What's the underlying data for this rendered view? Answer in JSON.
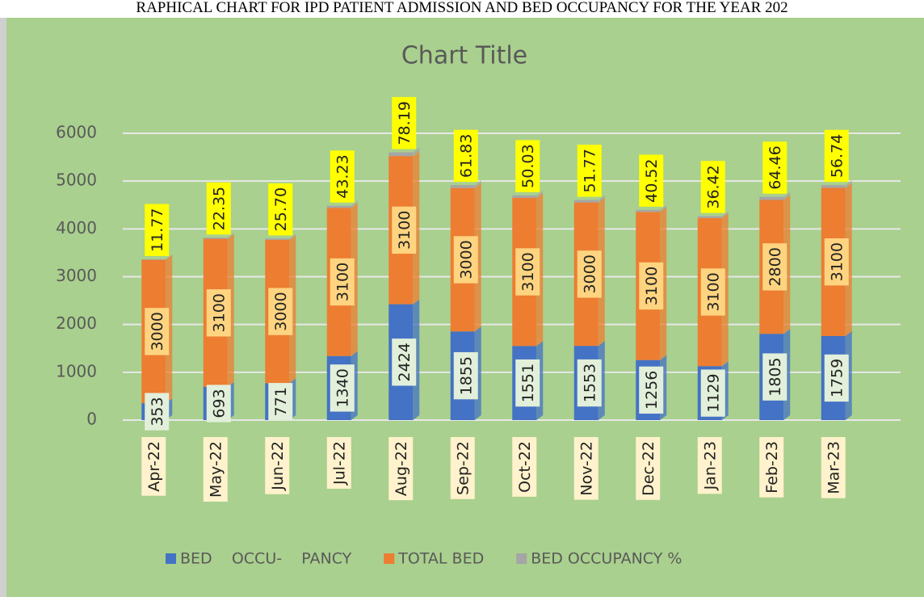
{
  "header": {
    "title": "RAPHICAL CHART FOR IPD PATIENT ADMISSION AND BED OCCUPANCY FOR THE YEAR 202"
  },
  "chart_data": {
    "type": "stacked_bar",
    "title": "Chart Title",
    "categories": [
      "Apr-22",
      "May-22",
      "Jun-22",
      "Jul-22",
      "Aug-22",
      "Sep-22",
      "Oct-22",
      "Nov-22",
      "Dec-22",
      "Jan-23",
      "Feb-23",
      "Mar-23"
    ],
    "series": [
      {
        "name": "BED    OCCU-    PANCY",
        "color": "#4472c4",
        "values": [
          353,
          693,
          771,
          1340,
          2424,
          1855,
          1551,
          1553,
          1256,
          1129,
          1805,
          1759
        ]
      },
      {
        "name": "TOTAL BED",
        "color": "#ed7d31",
        "values": [
          3000,
          3100,
          3000,
          3100,
          3100,
          3000,
          3100,
          3000,
          3100,
          3100,
          2800,
          3100
        ]
      },
      {
        "name": "BED OCCUPANCY %",
        "color": "#a5a5a5",
        "values": [
          11.77,
          22.35,
          25.7,
          43.23,
          78.19,
          61.83,
          50.03,
          51.77,
          40.52,
          36.42,
          64.46,
          56.74
        ],
        "value_labels": [
          "11.77",
          "22.35",
          "25.70",
          "43.23",
          "78.19",
          "61.83",
          "50.03",
          "51.77",
          "40.52",
          "36.42",
          "64.46",
          "56.74"
        ]
      }
    ],
    "ylim": [
      0,
      6000
    ],
    "yticks": [
      0,
      1000,
      2000,
      3000,
      4000,
      5000,
      6000
    ],
    "grid": true,
    "legend": "bottom"
  }
}
